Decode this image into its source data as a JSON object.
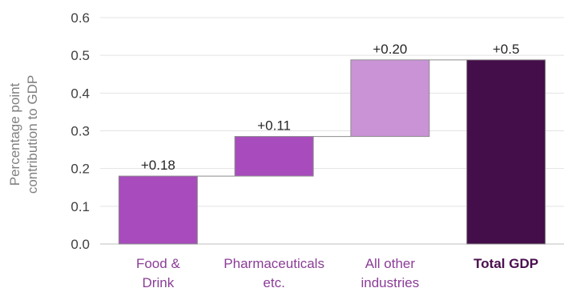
{
  "chart_data": {
    "type": "bar",
    "subtype": "waterfall",
    "title": "",
    "xlabel": "",
    "ylabel_lines": [
      "Percentage point",
      "contribution to  GDP"
    ],
    "ylim": [
      0,
      0.6
    ],
    "yticks": [
      "0.0",
      "0.1",
      "0.2",
      "0.3",
      "0.4",
      "0.5",
      "0.6"
    ],
    "grid": true,
    "categories": [
      {
        "lines": [
          "Food &",
          "Drink"
        ],
        "bold": false,
        "color": "#8B3D97"
      },
      {
        "lines": [
          "Pharmaceuticals",
          "etc."
        ],
        "bold": false,
        "color": "#8B3D97"
      },
      {
        "lines": [
          "All other",
          "industries"
        ],
        "bold": false,
        "color": "#8B3D97"
      },
      {
        "lines": [
          "Total GDP"
        ],
        "bold": true,
        "color": "#4A0E4E"
      }
    ],
    "bars": [
      {
        "start": 0.0,
        "end": 0.18,
        "label": "+0.18",
        "color": "#A84BBD"
      },
      {
        "start": 0.18,
        "end": 0.285,
        "label": "+0.11",
        "color": "#A84BBD"
      },
      {
        "start": 0.285,
        "end": 0.488,
        "label": "+0.20",
        "color": "#C993D6"
      },
      {
        "start": 0.0,
        "end": 0.488,
        "label": "+0.5",
        "color": "#440E4A"
      }
    ]
  }
}
